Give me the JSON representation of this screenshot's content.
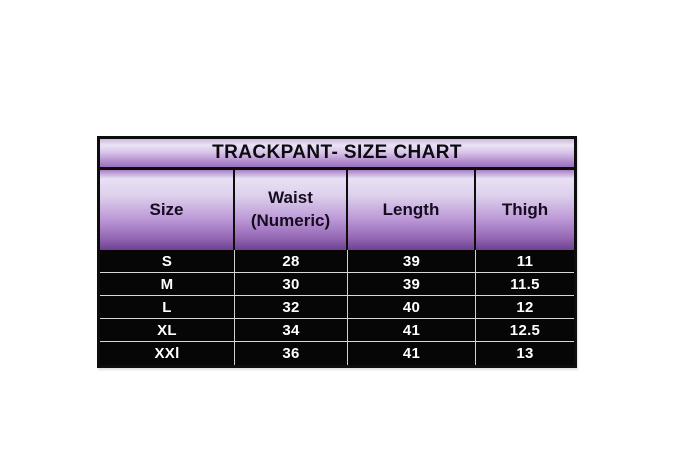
{
  "chart_data": {
    "type": "table",
    "title": "TRACKPANT- SIZE CHART",
    "columns": [
      "Size",
      "Waist (Numeric)",
      "Length",
      "Thigh"
    ],
    "rows": [
      [
        "S",
        28,
        39,
        11
      ],
      [
        "M",
        30,
        39,
        11.5
      ],
      [
        "L",
        32,
        40,
        12
      ],
      [
        "XL",
        34,
        41,
        12.5
      ],
      [
        "XXl",
        36,
        41,
        13
      ]
    ],
    "layout": {
      "header_style": "purple-gradient",
      "body_style": "black-rows-white-text",
      "grid": "white row dividers in body, black column dividers in header"
    }
  },
  "colors": {
    "page_background": "#ffffff",
    "table_border": "#0e0d0e",
    "header_gradient_top": "#e9e1f3",
    "header_gradient_mid": "#bb97d6",
    "header_gradient_bottom": "#6d4191",
    "title_text": "#0d0a12",
    "row_background": "#070607",
    "row_text": "#ffffff",
    "row_divider": "#d8d8d8"
  }
}
